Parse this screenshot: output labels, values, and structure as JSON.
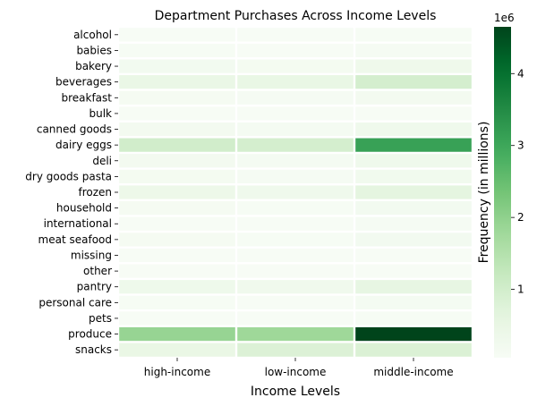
{
  "chart_data": {
    "type": "heatmap",
    "title": "Department Purchases Across Income Levels",
    "xlabel": "Income Levels",
    "ylabel": "",
    "colorbar_label": "Frequency (in millions)",
    "colorbar_multiplier": "1e6",
    "colorbar_ticks": [
      1,
      2,
      3,
      4
    ],
    "vmin": 0.05,
    "vmax": 4.65,
    "columns": [
      "high-income",
      "low-income",
      "middle-income"
    ],
    "rows": [
      "alcohol",
      "babies",
      "bakery",
      "beverages",
      "breakfast",
      "bulk",
      "canned goods",
      "dairy eggs",
      "deli",
      "dry goods pasta",
      "frozen",
      "household",
      "international",
      "meat seafood",
      "missing",
      "other",
      "pantry",
      "personal care",
      "pets",
      "produce",
      "snacks"
    ],
    "values_millions": [
      [
        0.05,
        0.04,
        0.07
      ],
      [
        0.07,
        0.04,
        0.11
      ],
      [
        0.2,
        0.15,
        0.32
      ],
      [
        0.45,
        0.5,
        0.95
      ],
      [
        0.12,
        0.1,
        0.19
      ],
      [
        0.01,
        0.01,
        0.02
      ],
      [
        0.18,
        0.14,
        0.3
      ],
      [
        1.0,
        0.95,
        3.1
      ],
      [
        0.18,
        0.14,
        0.29
      ],
      [
        0.15,
        0.11,
        0.24
      ],
      [
        0.38,
        0.3,
        0.62
      ],
      [
        0.12,
        0.09,
        0.2
      ],
      [
        0.06,
        0.05,
        0.1
      ],
      [
        0.12,
        0.09,
        0.2
      ],
      [
        0.04,
        0.03,
        0.06
      ],
      [
        0.02,
        0.02,
        0.03
      ],
      [
        0.33,
        0.27,
        0.55
      ],
      [
        0.08,
        0.06,
        0.13
      ],
      [
        0.05,
        0.04,
        0.08
      ],
      [
        1.9,
        1.8,
        4.65
      ],
      [
        0.48,
        0.8,
        0.82
      ]
    ],
    "colormap": "Greens"
  }
}
